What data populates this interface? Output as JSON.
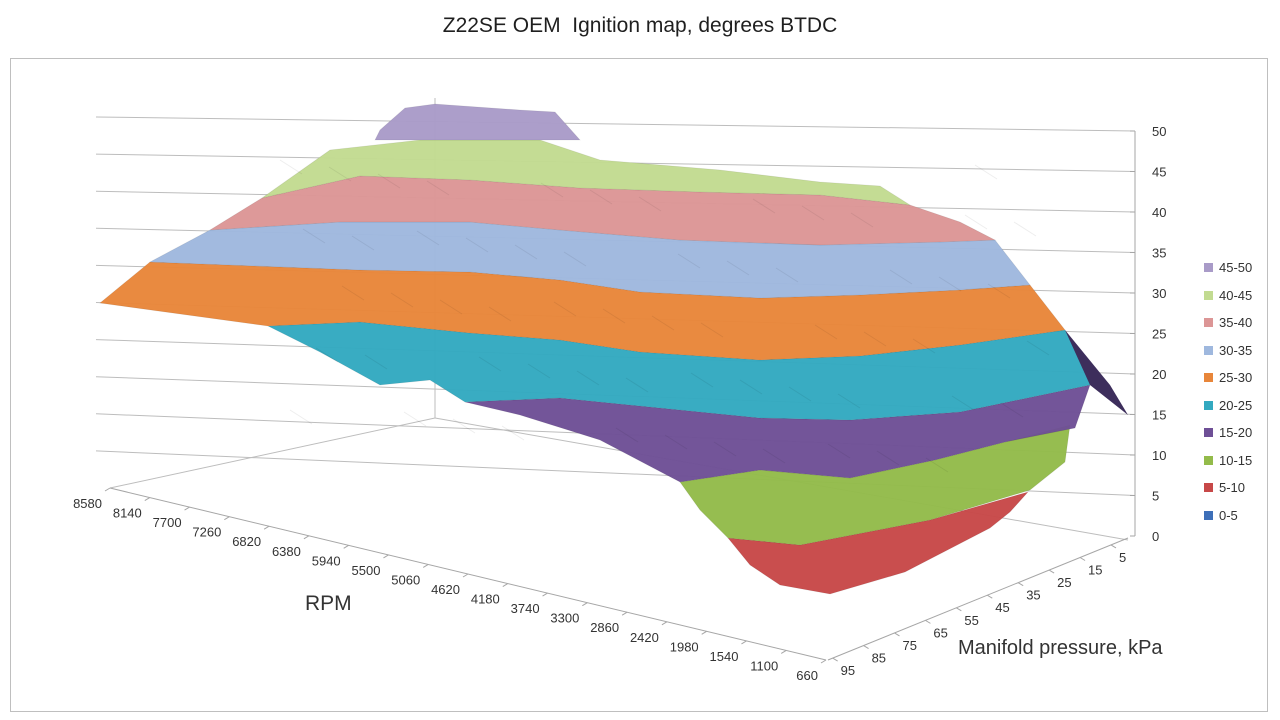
{
  "chart_data": {
    "type": "surface",
    "title": "Z22SE OEM  Ignition map, degrees BTDC",
    "xlabel": "RPM",
    "ylabel": "Manifold pressure, kPa",
    "zlim": [
      0,
      50
    ],
    "z_ticks": [
      0,
      5,
      10,
      15,
      20,
      25,
      30,
      35,
      40,
      45,
      50
    ],
    "rpm_ticks": [
      "8580",
      "8140",
      "7700",
      "7260",
      "6820",
      "6380",
      "5940",
      "5500",
      "5060",
      "4620",
      "4180",
      "3740",
      "3300",
      "2860",
      "2420",
      "1980",
      "1540",
      "1100",
      "660"
    ],
    "pressure_ticks": [
      "5",
      "15",
      "25",
      "35",
      "45",
      "55",
      "65",
      "75",
      "85",
      "95"
    ],
    "legend": [
      {
        "label": "45-50",
        "color": "#a99bc8"
      },
      {
        "label": "40-45",
        "color": "#c2db91"
      },
      {
        "label": "35-40",
        "color": "#dc9696"
      },
      {
        "label": "30-35",
        "color": "#9fb8de"
      },
      {
        "label": "25-30",
        "color": "#e8863a"
      },
      {
        "label": "20-25",
        "color": "#33a9c0"
      },
      {
        "label": "15-20",
        "color": "#6e4f96"
      },
      {
        "label": "10-15",
        "color": "#93bb4a"
      },
      {
        "label": "5-10",
        "color": "#c74848"
      },
      {
        "label": "0-5",
        "color": "#3e6fb8"
      }
    ]
  }
}
